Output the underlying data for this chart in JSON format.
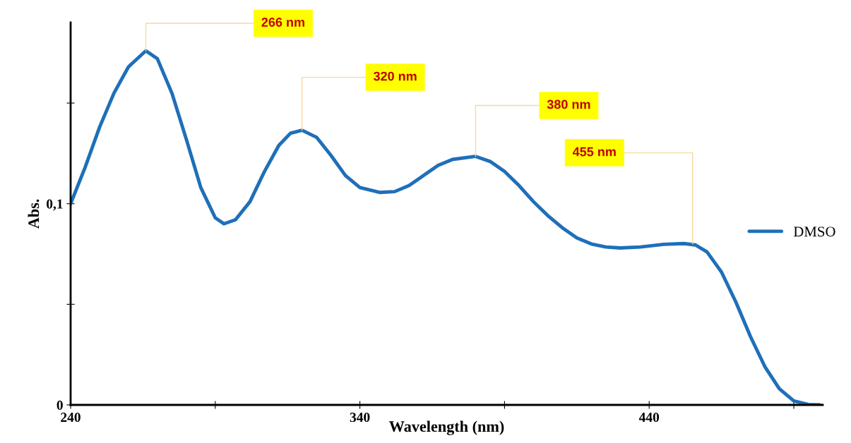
{
  "chart_data": {
    "type": "line",
    "xlabel": "Wavelength (nm)",
    "ylabel": "Abs.",
    "xlim": [
      240,
      500
    ],
    "ylim": [
      0,
      0.19
    ],
    "xticks": [
      240,
      {
        "value": 290,
        "label": null
      },
      340,
      {
        "value": 390,
        "label": null
      },
      440,
      {
        "value": 490,
        "label": null
      }
    ],
    "yticks": [
      {
        "value": 0,
        "label": "0"
      },
      {
        "value": 0.05,
        "label": null
      },
      {
        "value": 0.1,
        "label": "0,1"
      },
      {
        "value": 0.15,
        "label": null
      }
    ],
    "grid": false,
    "legend": "right",
    "marker": "none",
    "line_style": "solid",
    "series": [
      {
        "name": "DMSO",
        "color": "#1f6fb8",
        "x": [
          240,
          245,
          250,
          255,
          260,
          266,
          270,
          275,
          280,
          285,
          290,
          293,
          297,
          302,
          307,
          312,
          316,
          320,
          325,
          330,
          335,
          340,
          347,
          352,
          357,
          362,
          367,
          372,
          380,
          385,
          390,
          395,
          400,
          405,
          410,
          415,
          420,
          425,
          430,
          437,
          445,
          452,
          456,
          460,
          465,
          470,
          475,
          480,
          485,
          490,
          495,
          499
        ],
        "values": [
          0.1,
          0.118,
          0.138,
          0.155,
          0.168,
          0.176,
          0.172,
          0.155,
          0.132,
          0.108,
          0.093,
          0.09,
          0.092,
          0.101,
          0.116,
          0.129,
          0.135,
          0.1365,
          0.133,
          0.124,
          0.114,
          0.108,
          0.1056,
          0.106,
          0.109,
          0.114,
          0.119,
          0.122,
          0.1235,
          0.121,
          0.116,
          0.109,
          0.101,
          0.094,
          0.088,
          0.083,
          0.08,
          0.0785,
          0.078,
          0.0785,
          0.0798,
          0.0802,
          0.0795,
          0.076,
          0.066,
          0.051,
          0.034,
          0.019,
          0.008,
          0.002,
          0.0002,
          0
        ]
      }
    ],
    "annotations": [
      {
        "text": "266 nm",
        "x": 266,
        "y": 0.176
      },
      {
        "text": "320 nm",
        "x": 320,
        "y": 0.1365
      },
      {
        "text": "380 nm",
        "x": 380,
        "y": 0.1235
      },
      {
        "text": "455 nm",
        "x": 455,
        "y": 0.08
      }
    ]
  }
}
